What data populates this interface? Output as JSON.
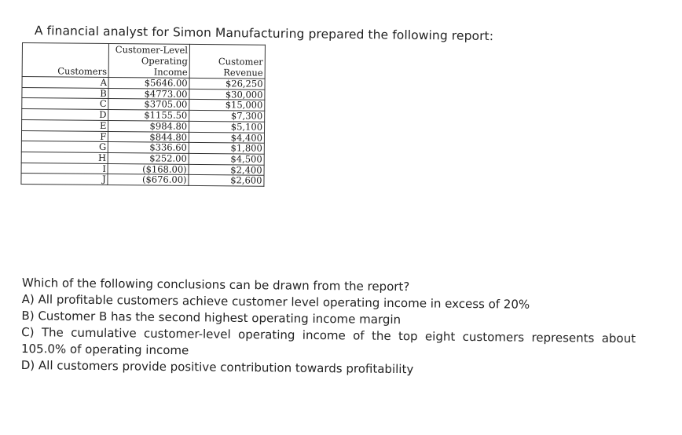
{
  "intro": "A financial analyst for Simon Manufacturing prepared the following report:",
  "report": {
    "headers": {
      "customer": "Customers",
      "operating_income": "Customer-Level Operating Income",
      "revenue": "Customer Revenue"
    },
    "rows": [
      {
        "customer": "A",
        "operating_income": "$5646.00",
        "revenue": "$26,250"
      },
      {
        "customer": "B",
        "operating_income": "$4773.00",
        "revenue": "$30,000"
      },
      {
        "customer": "C",
        "operating_income": "$3705.00",
        "revenue": "$15,000"
      },
      {
        "customer": "D",
        "operating_income": "$1155.50",
        "revenue": "$7,300"
      },
      {
        "customer": "E",
        "operating_income": "$984.80",
        "revenue": "$5,100"
      },
      {
        "customer": "F",
        "operating_income": "$844.80",
        "revenue": "$4,400"
      },
      {
        "customer": "G",
        "operating_income": "$336.60",
        "revenue": "$1,800"
      },
      {
        "customer": "H",
        "operating_income": "$252.00",
        "revenue": "$4,500"
      },
      {
        "customer": "I",
        "operating_income": "($168.00)",
        "revenue": "$2,400"
      },
      {
        "customer": "J",
        "operating_income": "($676.00)",
        "revenue": "$2,600"
      }
    ]
  },
  "question": {
    "stem": "Which of the following conclusions can be drawn from the report?",
    "option_a": "A) All profitable customers achieve customer level operating income in excess of 20%",
    "option_b": "B) Customer B has the second highest operating income margin",
    "option_c_words": [
      "C)",
      "The",
      "cumulative",
      "customer-level",
      "operating",
      "income",
      "of",
      "the",
      "top",
      "eight",
      "customers",
      "represents",
      "about"
    ],
    "option_c_cont": "105.0% of operating income",
    "option_d": "D) All customers provide positive contribution towards profitability"
  }
}
